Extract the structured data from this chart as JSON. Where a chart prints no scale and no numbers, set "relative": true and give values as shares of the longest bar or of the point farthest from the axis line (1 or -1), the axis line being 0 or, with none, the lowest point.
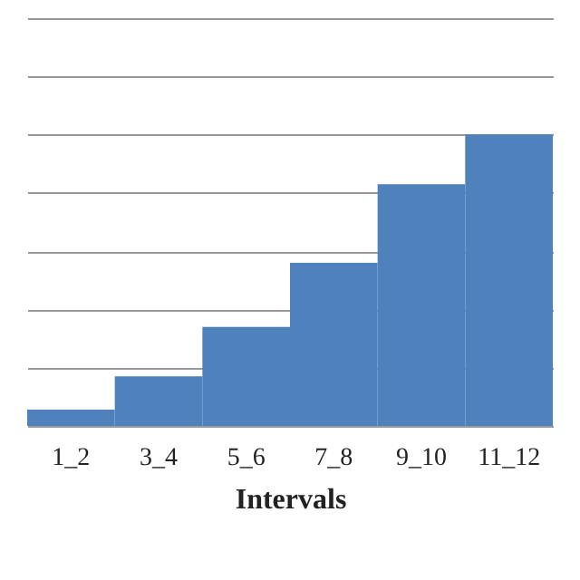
{
  "chart_data": {
    "type": "bar",
    "xlabel": "Intervals",
    "relative": true,
    "grid": "y",
    "color": "#4f81bd",
    "categories": [
      "1_2",
      "3_4",
      "5_6",
      "7_8",
      "9_10",
      "11_12"
    ],
    "values": [
      0.056,
      0.17,
      0.34,
      0.56,
      0.83,
      1
    ]
  }
}
